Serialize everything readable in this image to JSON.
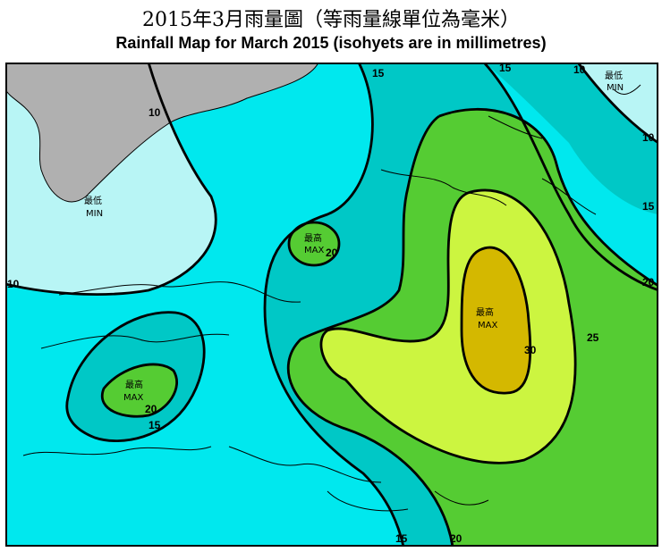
{
  "title": {
    "chinese": "2015年3月雨量圖（等雨量線單位為毫米）",
    "english": "Rainfall Map for March 2015 (isohyets are in millimetres)"
  },
  "map": {
    "isohyet_values": [
      "10",
      "15",
      "20",
      "25",
      "30"
    ],
    "contour_labels": {
      "top_10": "10",
      "top_15_a": "15",
      "top_15_b": "15",
      "top_10_b": "10",
      "right_10": "10",
      "right_15": "15",
      "right_20": "20",
      "left_10": "10",
      "center_20": "20",
      "right_25": "25",
      "center_30": "30",
      "sw_20": "20",
      "sw_15": "15",
      "bottom_15": "15",
      "bottom_20": "20"
    },
    "markers": {
      "min_nw_zh": "最低",
      "min_nw_en": "MIN",
      "min_ne_zh": "最低",
      "min_ne_en": "MIN",
      "max_center_zh": "最高",
      "max_center_en": "MAX",
      "max_east_zh": "最高",
      "max_east_en": "MAX",
      "max_sw_zh": "最高",
      "max_sw_en": "MAX"
    },
    "colors": {
      "lt10": "#b8f5f5",
      "r10_15": "#00e8ee",
      "r15_20": "#00c8c6",
      "r20_25": "#55cc33",
      "r25_30": "#ccf540",
      "gt30": "#d4b800",
      "land": "#b0b0b0",
      "contour": "#000000"
    }
  }
}
